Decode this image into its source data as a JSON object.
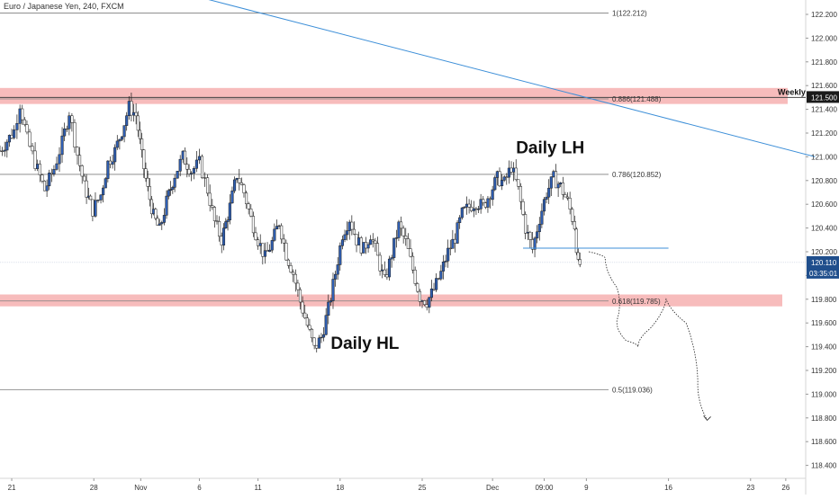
{
  "symbol_title": "Euro / Japanese Yen, 240, FXCM",
  "colors": {
    "up_body": "#2f5fb3",
    "down_body": "#ffffff",
    "wick": "#1a1a1a",
    "zone_fill": "#f4a6a6",
    "zone_line": "#e06666",
    "trendline": "#3d8fd8",
    "fib_line": "#7f7f7f",
    "axis_text": "#333333",
    "last_price_tag": "#1f4e8c",
    "weekly_tag": "#1a1a1a"
  },
  "chart_data": {
    "type": "candlestick",
    "interval": "240",
    "ylim": [
      118.3,
      122.3
    ],
    "y_ticks": [
      122.2,
      122.0,
      121.8,
      121.6,
      121.4,
      121.2,
      121.0,
      120.8,
      120.6,
      120.4,
      120.2,
      120.0,
      119.8,
      119.6,
      119.4,
      119.2,
      119.0,
      118.8,
      118.6,
      118.4
    ],
    "y_tick_labels": [
      "122.200",
      "122.000",
      "121.800",
      "121.600",
      "121.400",
      "121.200",
      "121.000",
      "120.800",
      "120.600",
      "120.400",
      "120.200",
      "120.000",
      "119.800",
      "119.600",
      "119.400",
      "119.200",
      "119.000",
      "118.800",
      "118.600",
      "118.400"
    ],
    "x_axis": {
      "domain_days": [
        -1,
        67.7
      ],
      "ticks": [
        {
          "day": 0,
          "label": "21"
        },
        {
          "day": 7,
          "label": "28"
        },
        {
          "day": 11,
          "label": "Nov"
        },
        {
          "day": 16,
          "label": "6"
        },
        {
          "day": 21,
          "label": "11"
        },
        {
          "day": 28,
          "label": "18"
        },
        {
          "day": 35,
          "label": "25"
        },
        {
          "day": 41,
          "label": "Dec"
        },
        {
          "day": 45.4,
          "label": "09:00"
        },
        {
          "day": 49,
          "label": "9"
        },
        {
          "day": 56,
          "label": "16"
        },
        {
          "day": 63,
          "label": "23"
        },
        {
          "day": 66,
          "label": "26"
        }
      ]
    },
    "candles_close_path": [
      [
        -1,
        121.05
      ],
      [
        0.2,
        121.22
      ],
      [
        0.7,
        121.45
      ],
      [
        1.3,
        121.15
      ],
      [
        2,
        120.95
      ],
      [
        2.8,
        120.72
      ],
      [
        3.6,
        120.9
      ],
      [
        4.3,
        121.12
      ],
      [
        4.9,
        121.38
      ],
      [
        5.6,
        121.02
      ],
      [
        6.2,
        120.75
      ],
      [
        6.9,
        120.55
      ],
      [
        7.6,
        120.68
      ],
      [
        8.2,
        120.95
      ],
      [
        8.8,
        121.05
      ],
      [
        9.4,
        121.22
      ],
      [
        10,
        121.42
      ],
      [
        10.6,
        121.35
      ],
      [
        11.1,
        121.0
      ],
      [
        11.6,
        120.72
      ],
      [
        12.1,
        120.5
      ],
      [
        12.6,
        120.38
      ],
      [
        13.2,
        120.62
      ],
      [
        13.9,
        120.85
      ],
      [
        14.6,
        121.0
      ],
      [
        15.3,
        120.88
      ],
      [
        16,
        120.95
      ],
      [
        16.7,
        120.72
      ],
      [
        17.3,
        120.45
      ],
      [
        17.9,
        120.3
      ],
      [
        18.6,
        120.58
      ],
      [
        19.2,
        120.85
      ],
      [
        19.8,
        120.7
      ],
      [
        20.4,
        120.48
      ],
      [
        21,
        120.3
      ],
      [
        21.6,
        120.15
      ],
      [
        22.2,
        120.28
      ],
      [
        22.8,
        120.45
      ],
      [
        23.4,
        120.18
      ],
      [
        24,
        120.02
      ],
      [
        24.6,
        119.78
      ],
      [
        25.2,
        119.58
      ],
      [
        25.8,
        119.38
      ],
      [
        26.4,
        119.48
      ],
      [
        27,
        119.72
      ],
      [
        27.6,
        120.02
      ],
      [
        28.2,
        120.35
      ],
      [
        28.8,
        120.48
      ],
      [
        29.4,
        120.3
      ],
      [
        30,
        120.22
      ],
      [
        30.6,
        120.35
      ],
      [
        31.2,
        120.15
      ],
      [
        31.8,
        119.95
      ],
      [
        32.4,
        120.18
      ],
      [
        33,
        120.42
      ],
      [
        33.6,
        120.28
      ],
      [
        34.2,
        120.05
      ],
      [
        34.8,
        119.82
      ],
      [
        35.4,
        119.78
      ],
      [
        36,
        119.88
      ],
      [
        36.6,
        120.02
      ],
      [
        37.2,
        120.2
      ],
      [
        37.8,
        120.32
      ],
      [
        38.4,
        120.52
      ],
      [
        39,
        120.58
      ],
      [
        39.6,
        120.62
      ],
      [
        40.2,
        120.58
      ],
      [
        40.8,
        120.7
      ],
      [
        41.4,
        120.82
      ],
      [
        42,
        120.78
      ],
      [
        42.6,
        120.92
      ],
      [
        43.2,
        120.72
      ],
      [
        43.8,
        120.4
      ],
      [
        44.4,
        120.22
      ],
      [
        45,
        120.48
      ],
      [
        45.6,
        120.7
      ],
      [
        46.2,
        120.82
      ],
      [
        46.8,
        120.75
      ],
      [
        47.4,
        120.62
      ],
      [
        48,
        120.42
      ],
      [
        48.3,
        120.08
      ],
      [
        48.6,
        120.11
      ]
    ],
    "last_price": 120.11,
    "last_price_label": "120.110",
    "countdown_label": "03:35:01",
    "weekly_zone": {
      "low": 121.445,
      "high": 121.58,
      "level": 121.5,
      "level_label": "121.500",
      "label": "Weekly"
    },
    "support_zone": {
      "low": 119.74,
      "high": 119.84
    },
    "fib_levels": [
      {
        "label": "1(122.212)",
        "value": 122.212
      },
      {
        "label": "0.886(121.488)",
        "value": 121.488
      },
      {
        "label": "0.786(120.852)",
        "value": 120.852
      },
      {
        "label": "0.618(119.785)",
        "value": 119.785
      },
      {
        "label": "0.5(119.036)",
        "value": 119.036
      }
    ],
    "trendline": [
      [
        8,
        122.55
      ],
      [
        68.5,
        121.0
      ]
    ],
    "neckline": {
      "x": [
        43.6,
        56
      ],
      "y": 120.23
    },
    "annotations": [
      {
        "text": "Daily LH",
        "day": 43,
        "value": 121.03
      },
      {
        "text": "Daily HL",
        "day": 27.2,
        "value": 119.38
      }
    ],
    "projection_path": [
      [
        49.2,
        120.2
      ],
      [
        50.6,
        120.15
      ],
      [
        51.6,
        119.9
      ],
      [
        51.6,
        119.62
      ],
      [
        52.4,
        119.45
      ],
      [
        53.4,
        119.4
      ],
      [
        54.4,
        119.55
      ],
      [
        55.8,
        119.8
      ],
      [
        57.5,
        119.6
      ],
      [
        58.5,
        119.1
      ],
      [
        59.3,
        118.78
      ]
    ]
  }
}
